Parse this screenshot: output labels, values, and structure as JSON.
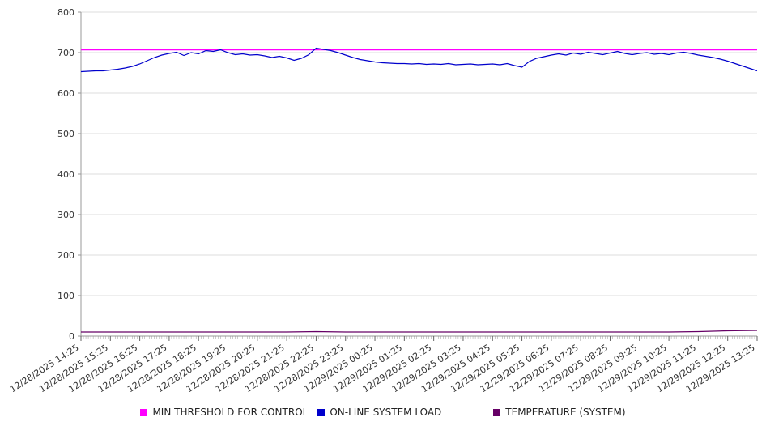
{
  "chart_data": {
    "type": "line",
    "title": "",
    "xlabel": "",
    "ylabel": "",
    "ylim": [
      0,
      800
    ],
    "ytick": 100,
    "grid": true,
    "legend_position": "bottom",
    "x_labels": [
      "12/28/2025 14:25",
      "12/28/2025 15:25",
      "12/28/2025 16:25",
      "12/28/2025 17:25",
      "12/28/2025 18:25",
      "12/28/2025 19:25",
      "12/28/2025 20:25",
      "12/28/2025 21:25",
      "12/28/2025 22:25",
      "12/28/2025 23:25",
      "12/29/2025 00:25",
      "12/29/2025 01:25",
      "12/29/2025 02:25",
      "12/29/2025 03:25",
      "12/29/2025 04:25",
      "12/29/2025 05:25",
      "12/29/2025 06:25",
      "12/29/2025 07:25",
      "12/29/2025 08:25",
      "12/29/2025 09:25",
      "12/29/2025 10:25",
      "12/29/2025 11:25",
      "12/29/2025 12:25",
      "12/29/2025 13:25"
    ],
    "series": [
      {
        "id": "min-threshold",
        "name": "MIN THRESHOLD FOR CONTROL",
        "color": "#ff00ff",
        "value": 707
      },
      {
        "id": "system-load",
        "name": "ON-LINE SYSTEM LOAD",
        "color": "#0000cc",
        "values": [
          653,
          654,
          655,
          655,
          657,
          659,
          662,
          666,
          672,
          680,
          688,
          694,
          698,
          701,
          693,
          700,
          697,
          705,
          703,
          707,
          700,
          695,
          697,
          694,
          695,
          692,
          688,
          691,
          687,
          681,
          686,
          695,
          711,
          708,
          705,
          700,
          694,
          688,
          683,
          680,
          677,
          675,
          674,
          673,
          673,
          672,
          673,
          671,
          672,
          671,
          673,
          670,
          671,
          672,
          670,
          671,
          672,
          670,
          673,
          668,
          664,
          678,
          686,
          690,
          694,
          697,
          694,
          699,
          696,
          701,
          698,
          695,
          699,
          703,
          698,
          695,
          698,
          700,
          696,
          698,
          695,
          699,
          701,
          698,
          694,
          691,
          688,
          684,
          679,
          673,
          667,
          661,
          655
        ]
      },
      {
        "id": "temperature",
        "name": "TEMPERATURE (SYSTEM)",
        "color": "#660066",
        "values": [
          10,
          10,
          10,
          10,
          10,
          10,
          10,
          10,
          11,
          10,
          10,
          10,
          10,
          10,
          10,
          10,
          10,
          10,
          10,
          10,
          10,
          11,
          13,
          14
        ]
      }
    ]
  }
}
